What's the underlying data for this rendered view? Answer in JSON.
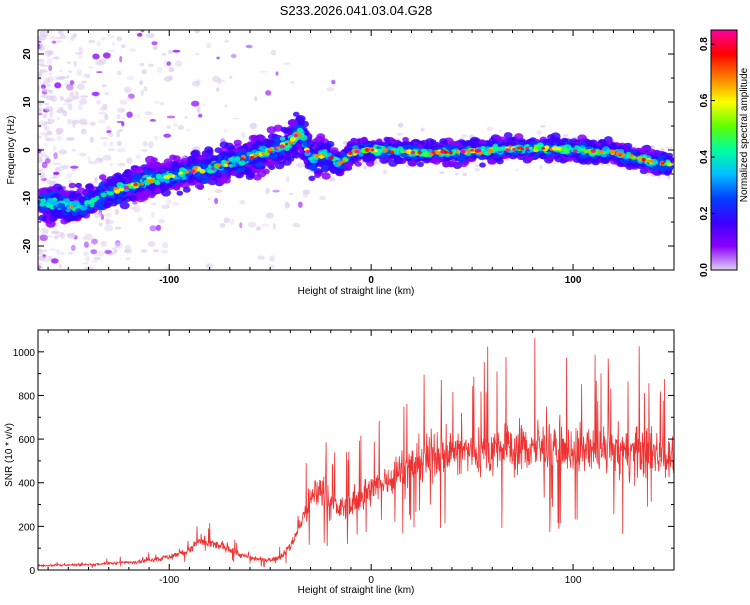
{
  "chart_data": [
    {
      "type": "heatmap",
      "title": "S233.2026.041.03.04.G28",
      "xlabel": "Height of straight line (km)",
      "ylabel": "Frequency (Hz)",
      "xlim": [
        -165,
        150
      ],
      "ylim": [
        -25,
        25
      ],
      "x_ticks": [
        -100,
        0,
        100
      ],
      "x_tick_labels": [
        "-100",
        "0",
        "100"
      ],
      "y_ticks": [
        -20,
        -10,
        0,
        10,
        20
      ],
      "y_tick_labels": [
        "-20",
        "-10",
        "0",
        "10",
        "20"
      ],
      "colorbar": {
        "label": "Normalized spectral amplitude",
        "range": [
          0.0,
          0.85
        ],
        "ticks": [
          0.0,
          0.2,
          0.4,
          0.6,
          0.8
        ],
        "tick_labels": [
          "0.0",
          "0.2",
          "0.4",
          "0.6",
          "0.8"
        ],
        "colormap": [
          "#e0d0f0",
          "#8a00ff",
          "#3a00ff",
          "#0040ff",
          "#00c0ff",
          "#00ffa0",
          "#60ff00",
          "#ffff00",
          "#ff8000",
          "#ff0000",
          "#ff00a0"
        ]
      },
      "ridge": {
        "description": "dominant frequency trace versus height",
        "x": [
          -160,
          -145,
          -130,
          -115,
          -100,
          -90,
          -80,
          -70,
          -60,
          -50,
          -40,
          -35,
          -30,
          -25,
          -20,
          -15,
          -10,
          0,
          20,
          40,
          60,
          80,
          100,
          120,
          140,
          148
        ],
        "frequency": [
          -11,
          -12,
          -9,
          -7,
          -5.5,
          -4.5,
          -4,
          -2.5,
          -1.5,
          0,
          1.5,
          4,
          -2,
          -1,
          -1.5,
          -3,
          -0.5,
          0,
          -0.5,
          -0.5,
          0,
          0.5,
          0,
          -0.5,
          -2.5,
          -3
        ]
      }
    },
    {
      "type": "line",
      "xlabel": "Height of straight line (km)",
      "ylabel": "SNR (10 * v/v)",
      "xlim": [
        -165,
        150
      ],
      "ylim": [
        0,
        1100
      ],
      "x_ticks": [
        -100,
        0,
        100
      ],
      "x_tick_labels": [
        "-100",
        "0",
        "100"
      ],
      "y_ticks": [
        0,
        200,
        400,
        600,
        800,
        1000
      ],
      "y_tick_labels": [
        "0",
        "200",
        "400",
        "600",
        "800",
        "1000"
      ],
      "color": "#ee3333",
      "series": [
        {
          "name": "SNR",
          "x": [
            -165,
            -140,
            -120,
            -110,
            -100,
            -90,
            -85,
            -80,
            -75,
            -70,
            -65,
            -60,
            -55,
            -50,
            -45,
            -40,
            -35,
            -30,
            -25,
            -20,
            -15,
            -10,
            -5,
            0,
            10,
            20,
            30,
            40,
            60,
            80,
            100,
            120,
            140,
            150
          ],
          "values": [
            20,
            25,
            35,
            45,
            60,
            90,
            130,
            120,
            110,
            100,
            70,
            55,
            50,
            45,
            60,
            110,
            210,
            320,
            380,
            300,
            280,
            300,
            340,
            360,
            430,
            480,
            520,
            540,
            550,
            560,
            550,
            540,
            540,
            530
          ]
        }
      ]
    }
  ]
}
